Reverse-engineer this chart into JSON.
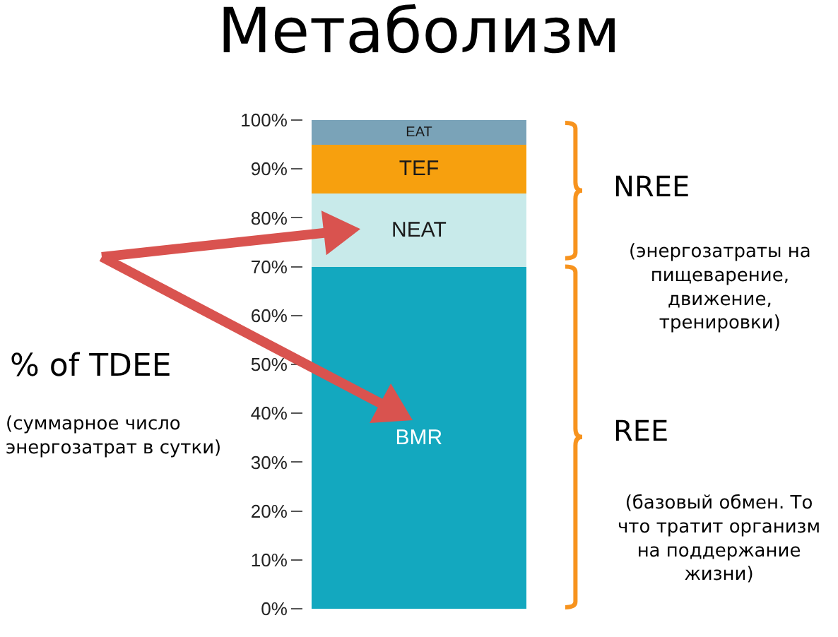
{
  "chart_data": {
    "type": "bar",
    "title": "Метаболизм",
    "stacked": true,
    "categories": [
      null
    ],
    "series": [
      {
        "name": "BMR",
        "color": "#13a8bf",
        "values": [
          70
        ]
      },
      {
        "name": "NEAT",
        "color": "#c8eaea",
        "values": [
          15
        ]
      },
      {
        "name": "TEF",
        "color": "#f7a00e",
        "values": [
          10
        ]
      },
      {
        "name": "EAT",
        "color": "#7aa3b8",
        "values": [
          5
        ]
      }
    ],
    "ylim": [
      0,
      100
    ],
    "yticks": [
      {
        "value": 0,
        "label": "0%"
      },
      {
        "value": 10,
        "label": "10%"
      },
      {
        "value": 20,
        "label": "20%"
      },
      {
        "value": 30,
        "label": "30%"
      },
      {
        "value": 40,
        "label": "40%"
      },
      {
        "value": 50,
        "label": "50%"
      },
      {
        "value": 60,
        "label": "60%"
      },
      {
        "value": 70,
        "label": "70%"
      },
      {
        "value": 80,
        "label": "80%"
      },
      {
        "value": 90,
        "label": "90%"
      },
      {
        "value": 100,
        "label": "100%"
      }
    ],
    "legend": false,
    "annotations": [
      "% of TDEE",
      "(суммарное число\nэнергозатрат в сутки)",
      "NREE",
      "(энергозатраты на\nпищеварение,\nдвижение,\nтренировки)",
      "REE",
      "(базовый обмен. То\nчто тратит организм\nна поддержание\nжизни)"
    ]
  }
}
